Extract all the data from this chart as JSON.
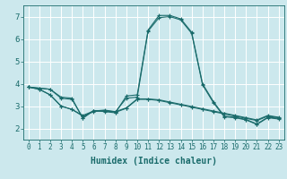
{
  "xlabel": "Humidex (Indice chaleur)",
  "ylabel": "",
  "xlim": [
    -0.5,
    23.5
  ],
  "ylim": [
    1.5,
    7.5
  ],
  "xticks": [
    0,
    1,
    2,
    3,
    4,
    5,
    6,
    7,
    8,
    9,
    10,
    11,
    12,
    13,
    14,
    15,
    16,
    17,
    18,
    19,
    20,
    21,
    22,
    23
  ],
  "yticks": [
    2,
    3,
    4,
    5,
    6,
    7
  ],
  "bg_color": "#cce8ed",
  "line_color": "#1a6b6b",
  "grid_color": "#ffffff",
  "lines": [
    {
      "x": [
        0,
        1,
        2,
        3,
        4,
        5,
        6,
        7,
        8,
        9,
        10,
        11,
        12,
        13,
        14,
        15,
        16,
        17,
        18,
        19,
        20,
        21,
        22,
        23
      ],
      "y": [
        3.85,
        3.8,
        3.75,
        3.4,
        3.35,
        2.45,
        2.8,
        2.75,
        2.7,
        3.45,
        3.5,
        6.4,
        7.05,
        7.05,
        6.9,
        6.3,
        4.0,
        3.2,
        2.55,
        2.5,
        2.4,
        2.2,
        2.5,
        2.45
      ]
    },
    {
      "x": [
        0,
        1,
        2,
        3,
        4,
        5,
        6,
        7,
        8,
        9,
        10,
        11,
        12,
        13,
        14,
        15,
        16,
        17,
        18,
        19,
        20,
        21,
        22,
        23
      ],
      "y": [
        3.85,
        3.8,
        3.75,
        3.35,
        3.3,
        2.48,
        2.8,
        2.78,
        2.75,
        3.35,
        3.4,
        6.35,
        6.95,
        7.0,
        6.85,
        6.25,
        3.95,
        3.15,
        2.52,
        2.48,
        2.38,
        2.18,
        2.48,
        2.42
      ]
    },
    {
      "x": [
        0,
        1,
        2,
        3,
        4,
        5,
        6,
        7,
        8,
        9,
        10,
        11,
        12,
        13,
        14,
        15,
        16,
        17,
        18,
        19,
        20,
        21,
        22,
        23
      ],
      "y": [
        3.85,
        3.75,
        3.5,
        3.0,
        2.85,
        2.55,
        2.75,
        2.8,
        2.72,
        2.9,
        3.3,
        3.3,
        3.25,
        3.15,
        3.05,
        2.95,
        2.85,
        2.75,
        2.65,
        2.55,
        2.45,
        2.35,
        2.55,
        2.48
      ]
    },
    {
      "x": [
        0,
        1,
        2,
        3,
        4,
        5,
        6,
        7,
        8,
        9,
        10,
        11,
        12,
        13,
        14,
        15,
        16,
        17,
        18,
        19,
        20,
        21,
        22,
        23
      ],
      "y": [
        3.85,
        3.75,
        3.5,
        3.0,
        2.85,
        2.58,
        2.78,
        2.82,
        2.75,
        2.92,
        3.32,
        3.32,
        3.28,
        3.18,
        3.08,
        2.98,
        2.88,
        2.78,
        2.68,
        2.58,
        2.48,
        2.38,
        2.58,
        2.5
      ]
    }
  ],
  "xlabel_fontsize": 7,
  "tick_fontsize": 5.5,
  "ytick_fontsize": 6.5
}
